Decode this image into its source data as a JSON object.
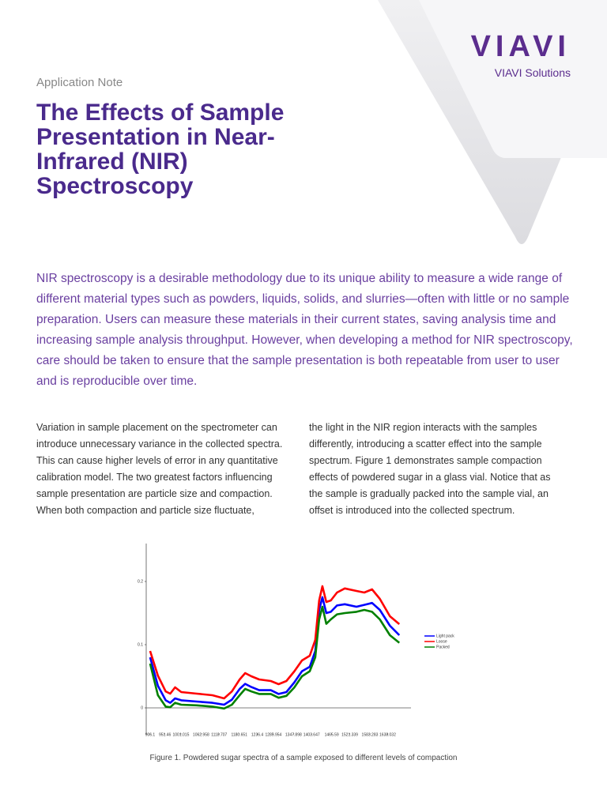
{
  "header": {
    "logo": "VIAVI",
    "company": "VIAVI Solutions",
    "label": "Application Note",
    "title": "The Effects of Sample Presentation in Near-Infrared (NIR) Spectroscopy"
  },
  "intro": "NIR spectroscopy is a desirable methodology due to its unique ability to measure a wide range of different material types such as powders, liquids, solids, and slurries—often with little or no sample preparation. Users can measure these materials in their current states, saving analysis time and increasing sample analysis throughput. However, when developing a method for NIR spectroscopy, care should be taken to ensure that the sample presentation is both repeatable from user to user and is reproducible over time.",
  "body": [
    "Variation in sample placement on the spectrometer can introduce unnecessary variance in the collected spectra. This can cause higher levels of error in any quantitative calibration model. The two greatest factors influencing sample presentation are particle size and compaction. When both compaction and particle size fluctuate,",
    "the light in the NIR region interacts with the samples differently, introducing a scatter effect into the sample spectrum. Figure 1 demonstrates sample compaction effects of powdered sugar in a glass vial. Notice that as the sample is gradually packed into the sample vial, an offset is introduced into the collected spectrum."
  ],
  "chart_data": {
    "type": "line",
    "caption": "Figure 1. Powdered sugar spectra of a sample exposed to different levels of compaction",
    "x": [
      906,
      930,
      954,
      968,
      983,
      1002,
      1050,
      1098,
      1134,
      1158,
      1182,
      1199,
      1218,
      1242,
      1278,
      1302,
      1326,
      1350,
      1374,
      1398,
      1415,
      1427,
      1437,
      1449,
      1463,
      1482,
      1506,
      1542,
      1566,
      1590,
      1614,
      1645,
      1674
    ],
    "series": [
      {
        "name": "Light pack",
        "color": "#0000ff",
        "values": [
          0.08,
          0.035,
          0.012,
          0.008,
          0.015,
          0.012,
          0.01,
          0.008,
          0.005,
          0.013,
          0.03,
          0.038,
          0.033,
          0.028,
          0.028,
          0.022,
          0.025,
          0.04,
          0.058,
          0.065,
          0.09,
          0.155,
          0.175,
          0.15,
          0.152,
          0.162,
          0.164,
          0.16,
          0.163,
          0.166,
          0.155,
          0.13,
          0.115
        ]
      },
      {
        "name": "Loose",
        "color": "#ff0000",
        "values": [
          0.09,
          0.051,
          0.026,
          0.0225,
          0.0325,
          0.025,
          0.0225,
          0.02,
          0.015,
          0.026,
          0.045,
          0.055,
          0.05,
          0.045,
          0.0425,
          0.0375,
          0.0425,
          0.0575,
          0.075,
          0.0825,
          0.1075,
          0.17,
          0.1925,
          0.1675,
          0.17,
          0.1825,
          0.189,
          0.185,
          0.1825,
          0.1875,
          0.1725,
          0.145,
          0.1325
        ]
      },
      {
        "name": "Packed",
        "color": "#008000",
        "values": [
          0.07,
          0.02,
          0.002,
          0.001,
          0.008,
          0.005,
          0.004,
          0.002,
          -0.001,
          0.005,
          0.02,
          0.03,
          0.026,
          0.022,
          0.022,
          0.016,
          0.019,
          0.032,
          0.05,
          0.058,
          0.08,
          0.14,
          0.16,
          0.133,
          0.14,
          0.148,
          0.15,
          0.152,
          0.155,
          0.152,
          0.14,
          0.115,
          0.103
        ]
      }
    ],
    "xlim": [
      894,
      1710
    ],
    "ylim": [
      -0.04,
      0.26
    ],
    "xticks": [
      906.1,
      951.46,
      1001.015,
      1062.958,
      1118.707,
      1180.651,
      1236.4,
      1285.954,
      1347.898,
      1403.647,
      1465.59,
      1521.339,
      1583.283,
      1638.032
    ],
    "yticks": [
      0,
      0.1,
      0.2
    ]
  }
}
